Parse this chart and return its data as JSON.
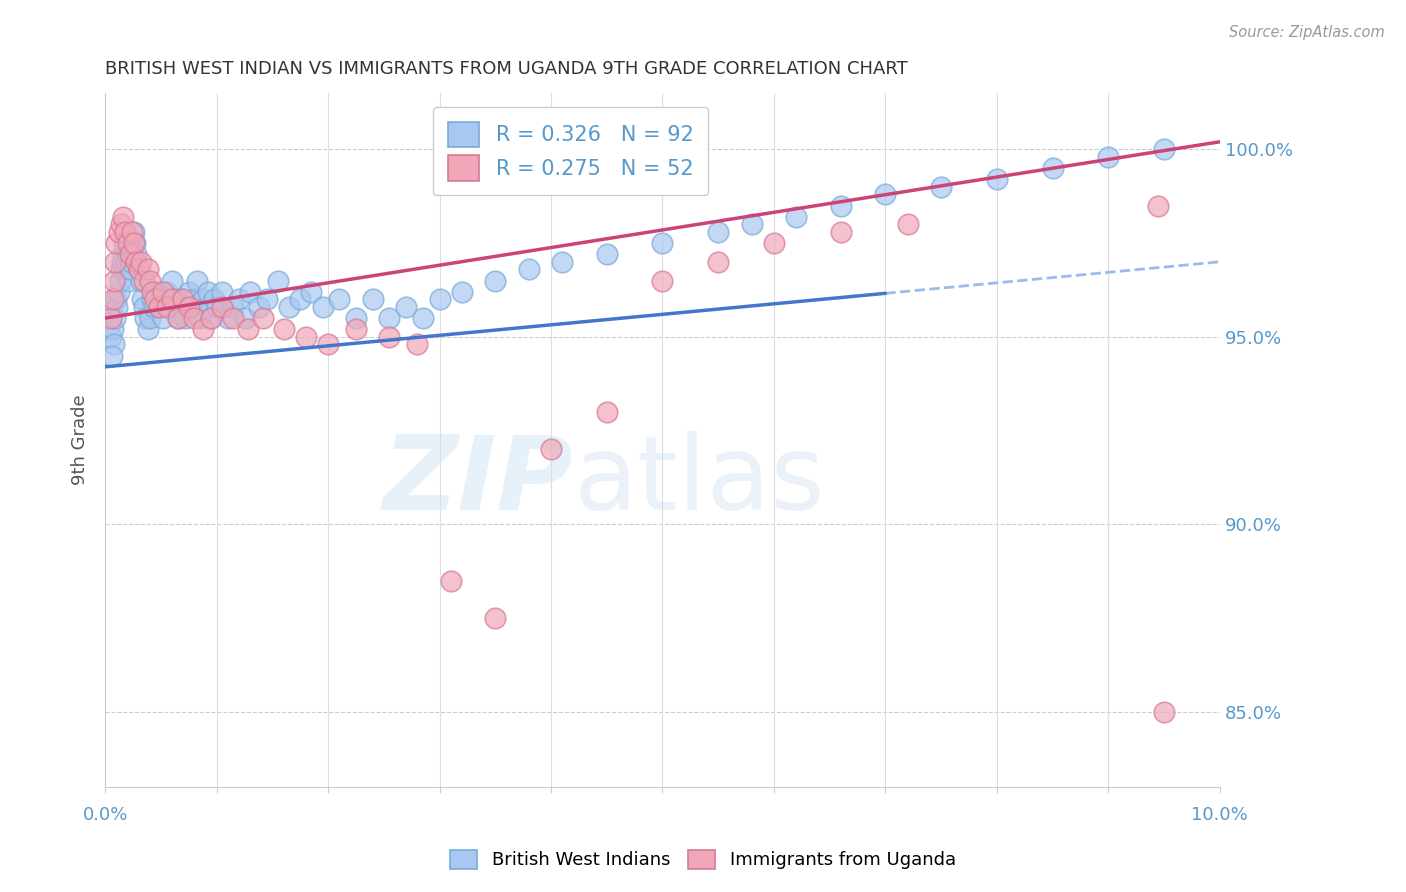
{
  "title": "BRITISH WEST INDIAN VS IMMIGRANTS FROM UGANDA 9TH GRADE CORRELATION CHART",
  "source": "Source: ZipAtlas.com",
  "ylabel": "9th Grade",
  "xmin": 0.0,
  "xmax": 10.0,
  "ymin": 83.0,
  "ymax": 101.5,
  "yticks": [
    85.0,
    90.0,
    95.0,
    100.0
  ],
  "ytick_labels": [
    "85.0%",
    "90.0%",
    "95.0%",
    "100.0%"
  ],
  "blue_R": 0.326,
  "blue_N": 92,
  "pink_R": 0.275,
  "pink_N": 52,
  "blue_label": "British West Indians",
  "pink_label": "Immigrants from Uganda",
  "blue_color": "#A8C8F0",
  "pink_color": "#F0A8B8",
  "blue_edge_color": "#7AAAD8",
  "pink_edge_color": "#D87898",
  "blue_line_color": "#4477CC",
  "pink_line_color": "#CC4477",
  "blue_dash_color": "#99BBEE",
  "axis_color": "#5599CC",
  "watermark_zip": "ZIP",
  "watermark_atlas": "atlas",
  "blue_scatter_x": [
    0.05,
    0.07,
    0.08,
    0.09,
    0.1,
    0.11,
    0.12,
    0.13,
    0.14,
    0.15,
    0.16,
    0.17,
    0.18,
    0.19,
    0.2,
    0.21,
    0.22,
    0.23,
    0.24,
    0.25,
    0.26,
    0.27,
    0.28,
    0.3,
    0.32,
    0.33,
    0.35,
    0.36,
    0.38,
    0.4,
    0.42,
    0.44,
    0.46,
    0.48,
    0.5,
    0.52,
    0.55,
    0.58,
    0.6,
    0.62,
    0.65,
    0.68,
    0.7,
    0.72,
    0.75,
    0.78,
    0.8,
    0.82,
    0.85,
    0.88,
    0.9,
    0.92,
    0.95,
    0.98,
    1.0,
    1.05,
    1.1,
    1.15,
    1.2,
    1.25,
    1.3,
    1.38,
    1.45,
    1.55,
    1.65,
    1.75,
    1.85,
    1.95,
    2.1,
    2.25,
    2.4,
    2.55,
    2.7,
    2.85,
    3.0,
    3.2,
    3.5,
    3.8,
    4.1,
    4.5,
    5.0,
    5.5,
    5.8,
    6.2,
    6.6,
    7.0,
    7.5,
    8.0,
    8.5,
    9.0,
    9.5,
    0.06
  ],
  "blue_scatter_y": [
    95.0,
    95.2,
    94.8,
    95.5,
    96.0,
    95.8,
    96.2,
    96.5,
    96.8,
    97.0,
    97.2,
    97.5,
    96.8,
    97.0,
    97.2,
    96.5,
    96.8,
    97.0,
    97.2,
    97.5,
    97.8,
    97.5,
    97.2,
    96.8,
    96.5,
    96.0,
    95.8,
    95.5,
    95.2,
    95.5,
    96.0,
    95.8,
    96.2,
    95.8,
    96.0,
    95.5,
    96.2,
    95.8,
    96.5,
    96.0,
    95.5,
    96.0,
    95.8,
    95.5,
    96.2,
    95.8,
    96.0,
    96.5,
    95.5,
    96.0,
    95.8,
    96.2,
    95.5,
    96.0,
    95.8,
    96.2,
    95.5,
    95.8,
    96.0,
    95.5,
    96.2,
    95.8,
    96.0,
    96.5,
    95.8,
    96.0,
    96.2,
    95.8,
    96.0,
    95.5,
    96.0,
    95.5,
    95.8,
    95.5,
    96.0,
    96.2,
    96.5,
    96.8,
    97.0,
    97.2,
    97.5,
    97.8,
    98.0,
    98.2,
    98.5,
    98.8,
    99.0,
    99.2,
    99.5,
    99.8,
    100.0,
    94.5
  ],
  "pink_scatter_x": [
    0.05,
    0.07,
    0.08,
    0.09,
    0.1,
    0.12,
    0.14,
    0.16,
    0.18,
    0.2,
    0.22,
    0.24,
    0.26,
    0.28,
    0.3,
    0.32,
    0.35,
    0.38,
    0.4,
    0.42,
    0.45,
    0.48,
    0.52,
    0.55,
    0.6,
    0.65,
    0.7,
    0.75,
    0.8,
    0.88,
    0.95,
    1.05,
    1.15,
    1.28,
    1.42,
    1.6,
    1.8,
    2.0,
    2.25,
    2.55,
    2.8,
    3.1,
    3.5,
    4.0,
    4.5,
    5.0,
    5.5,
    6.0,
    6.6,
    7.2,
    9.45,
    9.5
  ],
  "pink_scatter_y": [
    95.5,
    96.0,
    96.5,
    97.0,
    97.5,
    97.8,
    98.0,
    98.2,
    97.8,
    97.5,
    97.2,
    97.8,
    97.5,
    97.0,
    96.8,
    97.0,
    96.5,
    96.8,
    96.5,
    96.2,
    96.0,
    95.8,
    96.2,
    95.8,
    96.0,
    95.5,
    96.0,
    95.8,
    95.5,
    95.2,
    95.5,
    95.8,
    95.5,
    95.2,
    95.5,
    95.2,
    95.0,
    94.8,
    95.2,
    95.0,
    94.8,
    88.5,
    87.5,
    92.0,
    93.0,
    96.5,
    97.0,
    97.5,
    97.8,
    98.0,
    98.5,
    85.0
  ],
  "blue_line_x0": 0.0,
  "blue_line_y0": 94.2,
  "blue_line_x1": 10.0,
  "blue_line_y1": 97.0,
  "pink_line_x0": 0.0,
  "pink_line_y0": 95.5,
  "pink_line_x1": 10.0,
  "pink_line_y1": 100.2
}
